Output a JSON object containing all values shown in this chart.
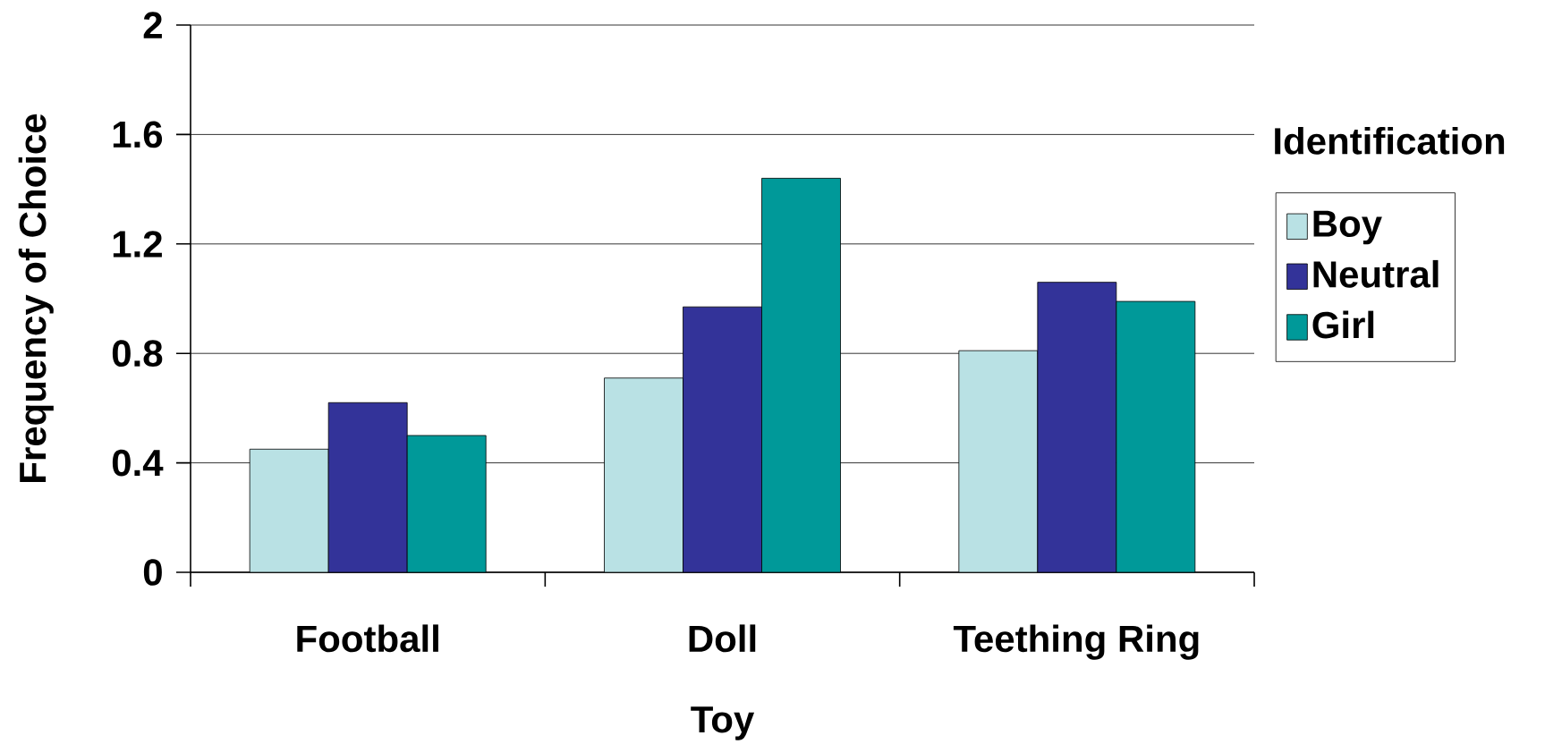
{
  "chart_data": {
    "type": "bar",
    "xlabel": "Toy",
    "ylabel": "Frequency of Choice",
    "legend_title": "Identification",
    "categories": [
      "Football",
      "Doll",
      "Teething Ring"
    ],
    "series": [
      {
        "name": "Boy",
        "color": "#b9e1e4",
        "values": [
          0.45,
          0.71,
          0.81
        ]
      },
      {
        "name": "Neutral",
        "color": "#333399",
        "values": [
          0.62,
          0.97,
          1.06
        ]
      },
      {
        "name": "Girl",
        "color": "#009999",
        "values": [
          0.5,
          1.44,
          0.99
        ]
      }
    ],
    "ylim": [
      0,
      2
    ],
    "yticks": [
      0,
      0.4,
      0.8,
      1.2,
      1.6,
      2
    ],
    "grid": "y",
    "legend": "right"
  }
}
